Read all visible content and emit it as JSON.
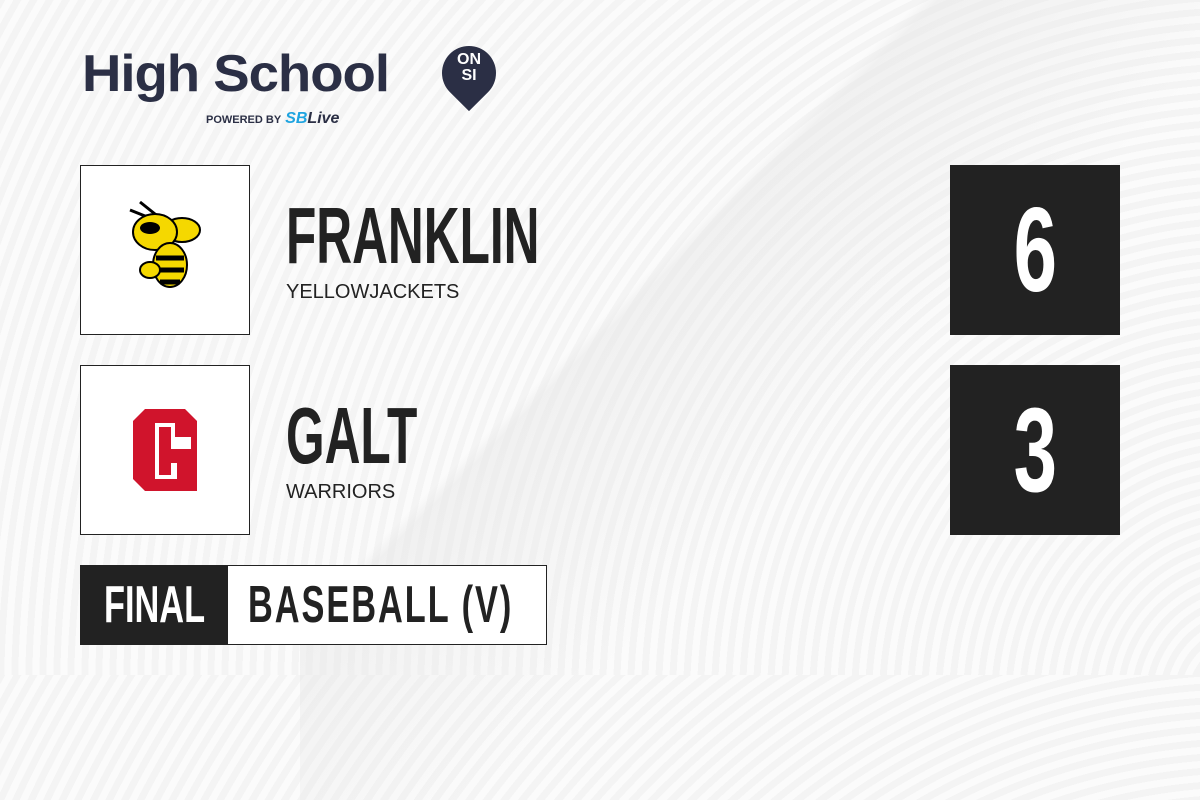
{
  "brand": {
    "title": "High School",
    "badge_top": "ON",
    "badge_bottom": "SI",
    "powered_by": "POWERED BY",
    "partner_a": "SB",
    "partner_b": "Live"
  },
  "teams": [
    {
      "name": "FRANKLIN",
      "mascot": "YELLOWJACKETS",
      "score": "6",
      "logo": "yellowjacket-icon"
    },
    {
      "name": "GALT",
      "mascot": "WARRIORS",
      "score": "3",
      "logo": "letter-g-icon"
    }
  ],
  "status": "FINAL",
  "sport": "BASEBALL (V)",
  "colors": {
    "dark": "#222222",
    "brand": "#2b2f45",
    "accent": "#1fa4e0",
    "galt_red": "#d0142c",
    "franklin_yellow": "#f5d800"
  }
}
